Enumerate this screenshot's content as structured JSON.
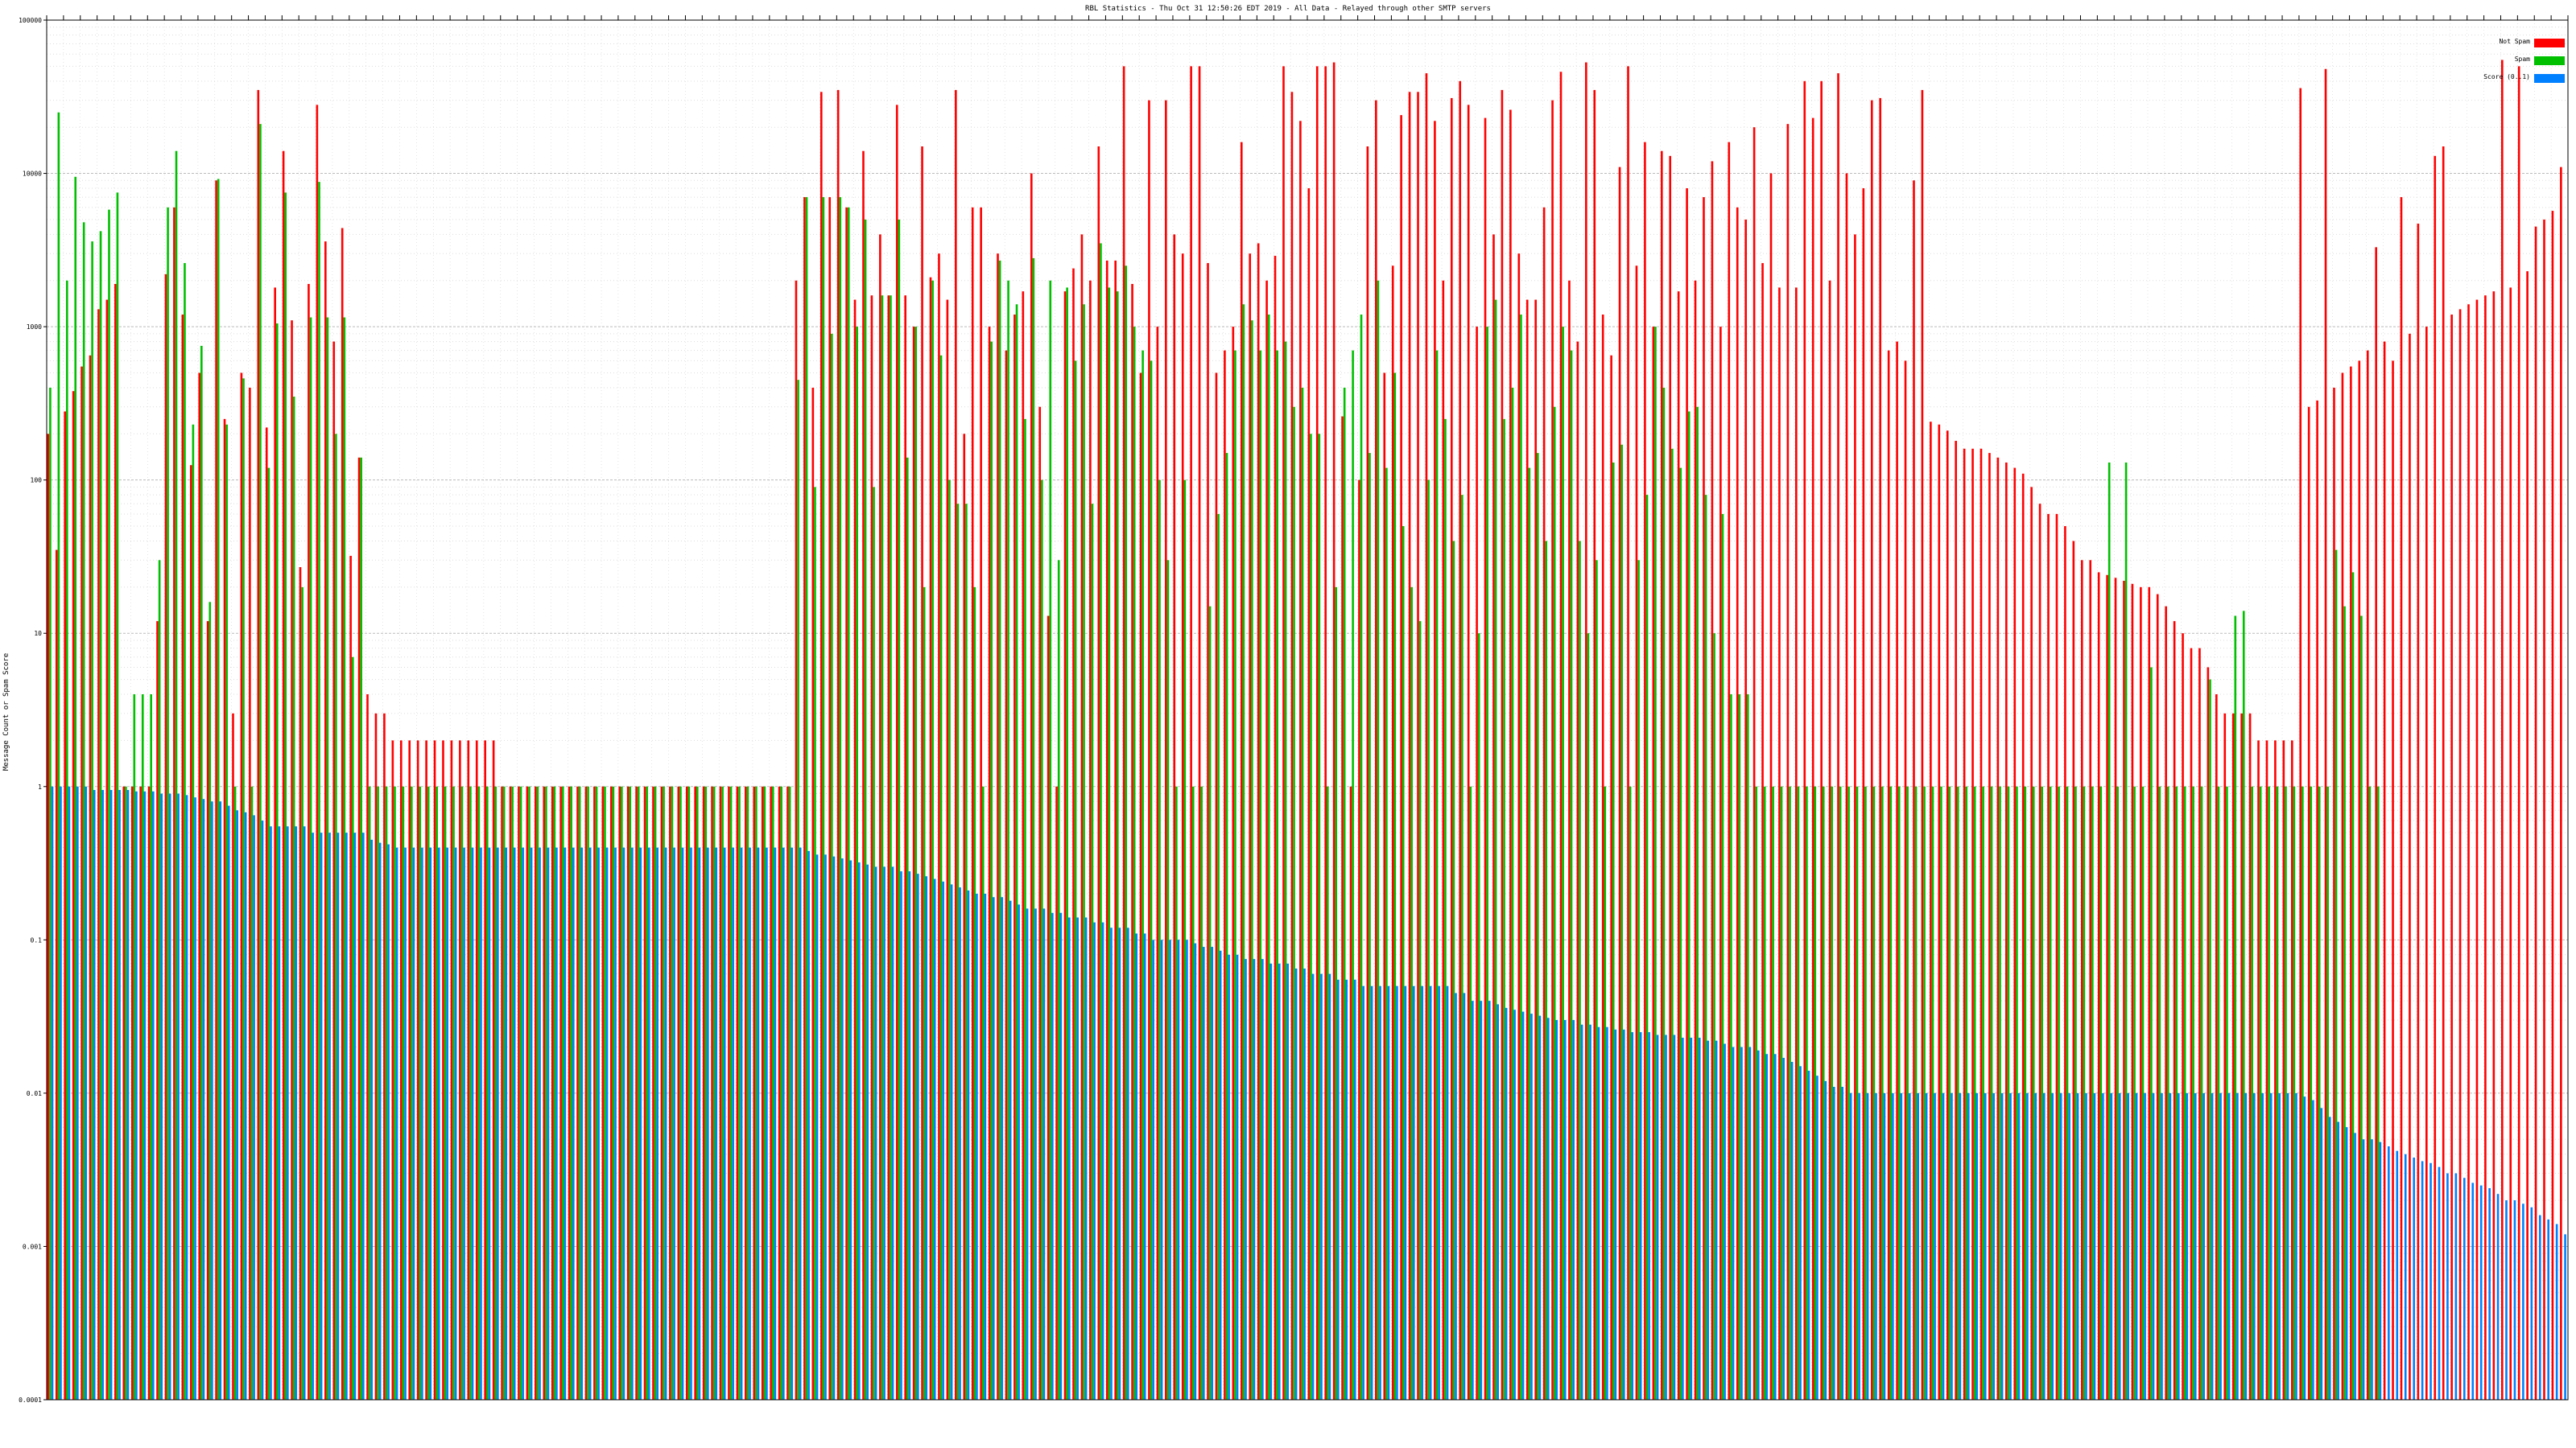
{
  "chart_data": {
    "type": "bar",
    "title": "RBL Statistics - Thu Oct 31 12:50:26 EDT 2019 - All Data - Relayed through other SMTP servers",
    "xlabel": "",
    "ylabel": "Message Count or Spam Score",
    "y_scale": "log",
    "ylim": [
      0.0001,
      100000
    ],
    "y_ticks": [
      "0.0001",
      "0.001",
      "0.01",
      "0.1",
      "1",
      "10",
      "100",
      "1000",
      "10000",
      "100000"
    ],
    "grid": true,
    "legend_position": "top-right",
    "colors": {
      "not_spam": "#ff0000",
      "spam": "#00c000",
      "score": "#0080ff"
    },
    "series": [
      {
        "name": "Not Spam",
        "values": [
          200,
          35,
          280,
          380,
          550,
          650,
          1300,
          1500,
          1900,
          1,
          1,
          1,
          1,
          12,
          2200,
          6000,
          1200,
          125,
          500,
          12,
          9000,
          250,
          3,
          500,
          400,
          35000,
          220,
          1800,
          14000,
          1100,
          27,
          1900,
          28000,
          3600,
          800,
          4400,
          32,
          140,
          4,
          3,
          3,
          2,
          2,
          2,
          2,
          2,
          2,
          2,
          2,
          2,
          2,
          2,
          2,
          2,
          1,
          1,
          1,
          1,
          1,
          1,
          1,
          1,
          1,
          1,
          1,
          1,
          1,
          1,
          1,
          1,
          1,
          1,
          1,
          1,
          1,
          1,
          1,
          1,
          1,
          1,
          1,
          1,
          1,
          1,
          1,
          1,
          1,
          1,
          1,
          2000,
          7000,
          400,
          34000,
          7000,
          35000,
          6000,
          1500,
          14000,
          1600,
          4000,
          1600,
          28000,
          1600,
          1000,
          15000,
          2100,
          3000,
          1500,
          35000,
          200,
          6000,
          6000,
          1000,
          3000,
          700,
          1200,
          1700,
          10000,
          300,
          13,
          1,
          1700,
          2400,
          4000,
          2000,
          15000,
          2700,
          2700,
          50000,
          1900,
          500,
          30000,
          1000,
          30000,
          4000,
          3000,
          50000,
          50000,
          2600,
          500,
          700,
          1000,
          16000,
          3000,
          3500,
          2000,
          2900,
          50000,
          34000,
          22000,
          8000,
          50000,
          50000,
          53000,
          260,
          1,
          100,
          15000,
          30000,
          500,
          2500,
          24000,
          34000,
          34000,
          45000,
          22000,
          2000,
          31000,
          40000,
          28000,
          1000,
          23000,
          4000,
          35000,
          26000,
          3000,
          1500,
          1500,
          6000,
          30000,
          46000,
          2000,
          800,
          53000,
          35000,
          1200,
          650,
          11000,
          50000,
          2500,
          16000,
          1000,
          14000,
          13000,
          1700,
          8000,
          2000,
          7000,
          12000,
          1000,
          16000,
          6000,
          5000,
          20000,
          2600,
          10000,
          1800,
          21000,
          1800,
          40000,
          23000,
          40000,
          2000,
          45000,
          10000,
          4000,
          8000,
          30000,
          31000,
          700,
          800,
          600,
          9000,
          35000,
          240,
          230,
          210,
          180,
          160,
          160,
          160,
          150,
          140,
          130,
          120,
          110,
          90,
          70,
          60,
          60,
          50,
          40,
          30,
          30,
          25,
          24,
          23,
          22,
          21,
          20,
          20,
          18,
          15,
          12,
          10,
          8,
          8,
          6,
          4,
          3,
          3,
          3,
          3,
          2,
          2,
          2,
          2,
          2,
          36000,
          300,
          330,
          48000,
          400,
          500,
          550,
          600,
          700,
          3300,
          800,
          600,
          7000,
          900,
          4700,
          1000,
          13000,
          15000,
          1200,
          1300,
          1400,
          1500,
          1600,
          1700,
          55000,
          1800,
          50000,
          2300,
          4500,
          5000,
          5700,
          11000
        ]
      },
      {
        "name": "Spam",
        "values": [
          400,
          25000,
          2000,
          9500,
          4800,
          3600,
          4200,
          5800,
          7500,
          1,
          4,
          4,
          4,
          30,
          6000,
          14000,
          2600,
          230,
          750,
          16,
          9200,
          230,
          1,
          460,
          1,
          21000,
          120,
          1050,
          7500,
          350,
          20,
          1150,
          8800,
          1150,
          200,
          1150,
          7,
          140,
          1,
          1,
          1,
          1,
          1,
          1,
          1,
          1,
          1,
          1,
          1,
          1,
          1,
          1,
          1,
          1,
          1,
          1,
          1,
          1,
          1,
          1,
          1,
          1,
          1,
          1,
          1,
          1,
          1,
          1,
          1,
          1,
          1,
          1,
          1,
          1,
          1,
          1,
          1,
          1,
          1,
          1,
          1,
          1,
          1,
          1,
          1,
          1,
          1,
          1,
          1,
          450,
          7000,
          90,
          7000,
          900,
          7000,
          6000,
          1000,
          5000,
          90,
          1600,
          1600,
          5000,
          140,
          1000,
          20,
          2000,
          650,
          100,
          70,
          70,
          20,
          1,
          800,
          2700,
          2000,
          1400,
          250,
          2800,
          100,
          2000,
          30,
          1800,
          600,
          1400,
          70,
          3500,
          1800,
          1700,
          2500,
          1000,
          700,
          600,
          100,
          30,
          1,
          100,
          1,
          1,
          15,
          60,
          150,
          700,
          1400,
          1100,
          700,
          1200,
          700,
          800,
          300,
          400,
          200,
          200,
          1,
          20,
          400,
          700,
          1200,
          150,
          2000,
          120,
          500,
          50,
          20,
          12,
          100,
          700,
          250,
          40,
          80,
          1,
          10,
          1000,
          1500,
          250,
          400,
          1200,
          120,
          150,
          40,
          300,
          1000,
          700,
          40,
          10,
          30,
          1,
          130,
          170,
          1,
          30,
          80,
          1000,
          400,
          160,
          120,
          280,
          300,
          80,
          10,
          60,
          4,
          4,
          4,
          1,
          1,
          1,
          1,
          1,
          1,
          1,
          1,
          1,
          1,
          1,
          1,
          1,
          1,
          1,
          1,
          1,
          1,
          1,
          1,
          1,
          1,
          1,
          1,
          1,
          1,
          1,
          1,
          1,
          1,
          1,
          1,
          1,
          1,
          1,
          1,
          1,
          1,
          1,
          1,
          1,
          1,
          130,
          1,
          130,
          1,
          1,
          6,
          1,
          1,
          1,
          1,
          1,
          1,
          5,
          1,
          1,
          13,
          14,
          1,
          1,
          1,
          1,
          1,
          1,
          1,
          1,
          1,
          1,
          35,
          15,
          25,
          13,
          1,
          1
        ]
      },
      {
        "name": "Score (0..1)",
        "values": [
          1,
          1,
          1,
          1,
          1,
          0.95,
          0.95,
          0.95,
          0.95,
          0.95,
          0.93,
          0.93,
          0.93,
          0.9,
          0.9,
          0.9,
          0.88,
          0.85,
          0.83,
          0.8,
          0.8,
          0.75,
          0.7,
          0.68,
          0.65,
          0.6,
          0.55,
          0.55,
          0.55,
          0.55,
          0.55,
          0.5,
          0.5,
          0.5,
          0.5,
          0.5,
          0.5,
          0.5,
          0.45,
          0.43,
          0.42,
          0.4,
          0.4,
          0.4,
          0.4,
          0.4,
          0.4,
          0.4,
          0.4,
          0.4,
          0.4,
          0.4,
          0.4,
          0.4,
          0.4,
          0.4,
          0.4,
          0.4,
          0.4,
          0.4,
          0.4,
          0.4,
          0.4,
          0.4,
          0.4,
          0.4,
          0.4,
          0.4,
          0.4,
          0.4,
          0.4,
          0.4,
          0.4,
          0.4,
          0.4,
          0.4,
          0.4,
          0.4,
          0.4,
          0.4,
          0.4,
          0.4,
          0.4,
          0.4,
          0.4,
          0.4,
          0.4,
          0.4,
          0.4,
          0.4,
          0.38,
          0.36,
          0.36,
          0.35,
          0.34,
          0.33,
          0.32,
          0.31,
          0.3,
          0.3,
          0.3,
          0.28,
          0.28,
          0.27,
          0.26,
          0.25,
          0.24,
          0.23,
          0.22,
          0.21,
          0.2,
          0.2,
          0.19,
          0.19,
          0.18,
          0.17,
          0.16,
          0.16,
          0.16,
          0.15,
          0.15,
          0.14,
          0.14,
          0.14,
          0.13,
          0.13,
          0.12,
          0.12,
          0.12,
          0.11,
          0.11,
          0.1,
          0.1,
          0.1,
          0.1,
          0.1,
          0.095,
          0.09,
          0.09,
          0.085,
          0.08,
          0.08,
          0.075,
          0.075,
          0.075,
          0.07,
          0.07,
          0.07,
          0.065,
          0.065,
          0.06,
          0.06,
          0.06,
          0.055,
          0.055,
          0.055,
          0.05,
          0.05,
          0.05,
          0.05,
          0.05,
          0.05,
          0.05,
          0.05,
          0.05,
          0.05,
          0.05,
          0.045,
          0.045,
          0.04,
          0.04,
          0.04,
          0.038,
          0.036,
          0.035,
          0.034,
          0.033,
          0.032,
          0.031,
          0.03,
          0.03,
          0.03,
          0.028,
          0.028,
          0.027,
          0.027,
          0.026,
          0.026,
          0.025,
          0.025,
          0.025,
          0.024,
          0.024,
          0.024,
          0.023,
          0.023,
          0.023,
          0.022,
          0.022,
          0.021,
          0.02,
          0.02,
          0.02,
          0.019,
          0.018,
          0.018,
          0.017,
          0.016,
          0.015,
          0.014,
          0.013,
          0.012,
          0.011,
          0.011,
          0.01,
          0.01,
          0.01,
          0.01,
          0.01,
          0.01,
          0.01,
          0.01,
          0.01,
          0.01,
          0.01,
          0.01,
          0.01,
          0.01,
          0.01,
          0.01,
          0.01,
          0.01,
          0.01,
          0.01,
          0.01,
          0.01,
          0.01,
          0.01,
          0.01,
          0.01,
          0.01,
          0.01,
          0.01,
          0.01,
          0.01,
          0.01,
          0.01,
          0.01,
          0.01,
          0.01,
          0.01,
          0.01,
          0.01,
          0.01,
          0.01,
          0.01,
          0.01,
          0.01,
          0.01,
          0.01,
          0.01,
          0.01,
          0.01,
          0.01,
          0.01,
          0.01,
          0.01,
          0.01,
          0.0095,
          0.009,
          0.008,
          0.007,
          0.0065,
          0.006,
          0.0055,
          0.005,
          0.005,
          0.0048,
          0.0045,
          0.0042,
          0.004,
          0.0038,
          0.0036,
          0.0035,
          0.0033,
          0.003,
          0.003,
          0.0028,
          0.0026,
          0.0025,
          0.0024,
          0.0022,
          0.002,
          0.002,
          0.0019,
          0.0018,
          0.0016,
          0.0015,
          0.0014,
          0.0012,
          0.001,
          0.0008,
          0.0006,
          0.0005,
          0.0004,
          0.0003,
          0.00025,
          0.0002
        ]
      }
    ]
  }
}
